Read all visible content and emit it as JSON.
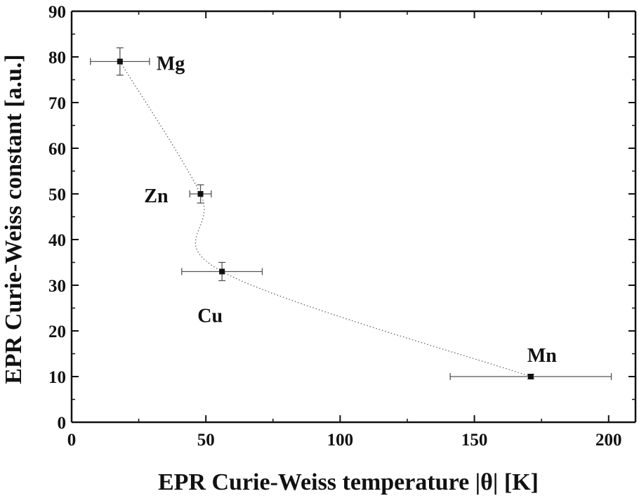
{
  "chart_data": {
    "type": "scatter",
    "title": "",
    "xlabel": "EPR Curie-Weiss temperature  |θ| [K]",
    "ylabel": "EPR Curie-Weiss constant [a.u.]",
    "xlim": [
      0,
      210
    ],
    "ylim": [
      0,
      90
    ],
    "x_ticks": [
      0,
      50,
      100,
      150,
      200
    ],
    "y_ticks": [
      0,
      10,
      20,
      30,
      40,
      50,
      60,
      70,
      80,
      90
    ],
    "grid": false,
    "legend": "none",
    "trend_line": "dotted",
    "colors": {
      "marker": "#111111",
      "error_bar": "#555555",
      "trend": "#666666",
      "axis": "#111111"
    },
    "points": [
      {
        "label": "Mg",
        "x": 18,
        "y": 79,
        "x_err": 11,
        "y_err": 3
      },
      {
        "label": "Zn",
        "x": 48,
        "y": 50,
        "x_err": 4,
        "y_err": 2
      },
      {
        "label": "Cu",
        "x": 56,
        "y": 33,
        "x_err": 15,
        "y_err": 2
      },
      {
        "label": "Mn",
        "x": 171,
        "y": 10,
        "x_err": 30,
        "y_err": 0.5
      }
    ]
  }
}
